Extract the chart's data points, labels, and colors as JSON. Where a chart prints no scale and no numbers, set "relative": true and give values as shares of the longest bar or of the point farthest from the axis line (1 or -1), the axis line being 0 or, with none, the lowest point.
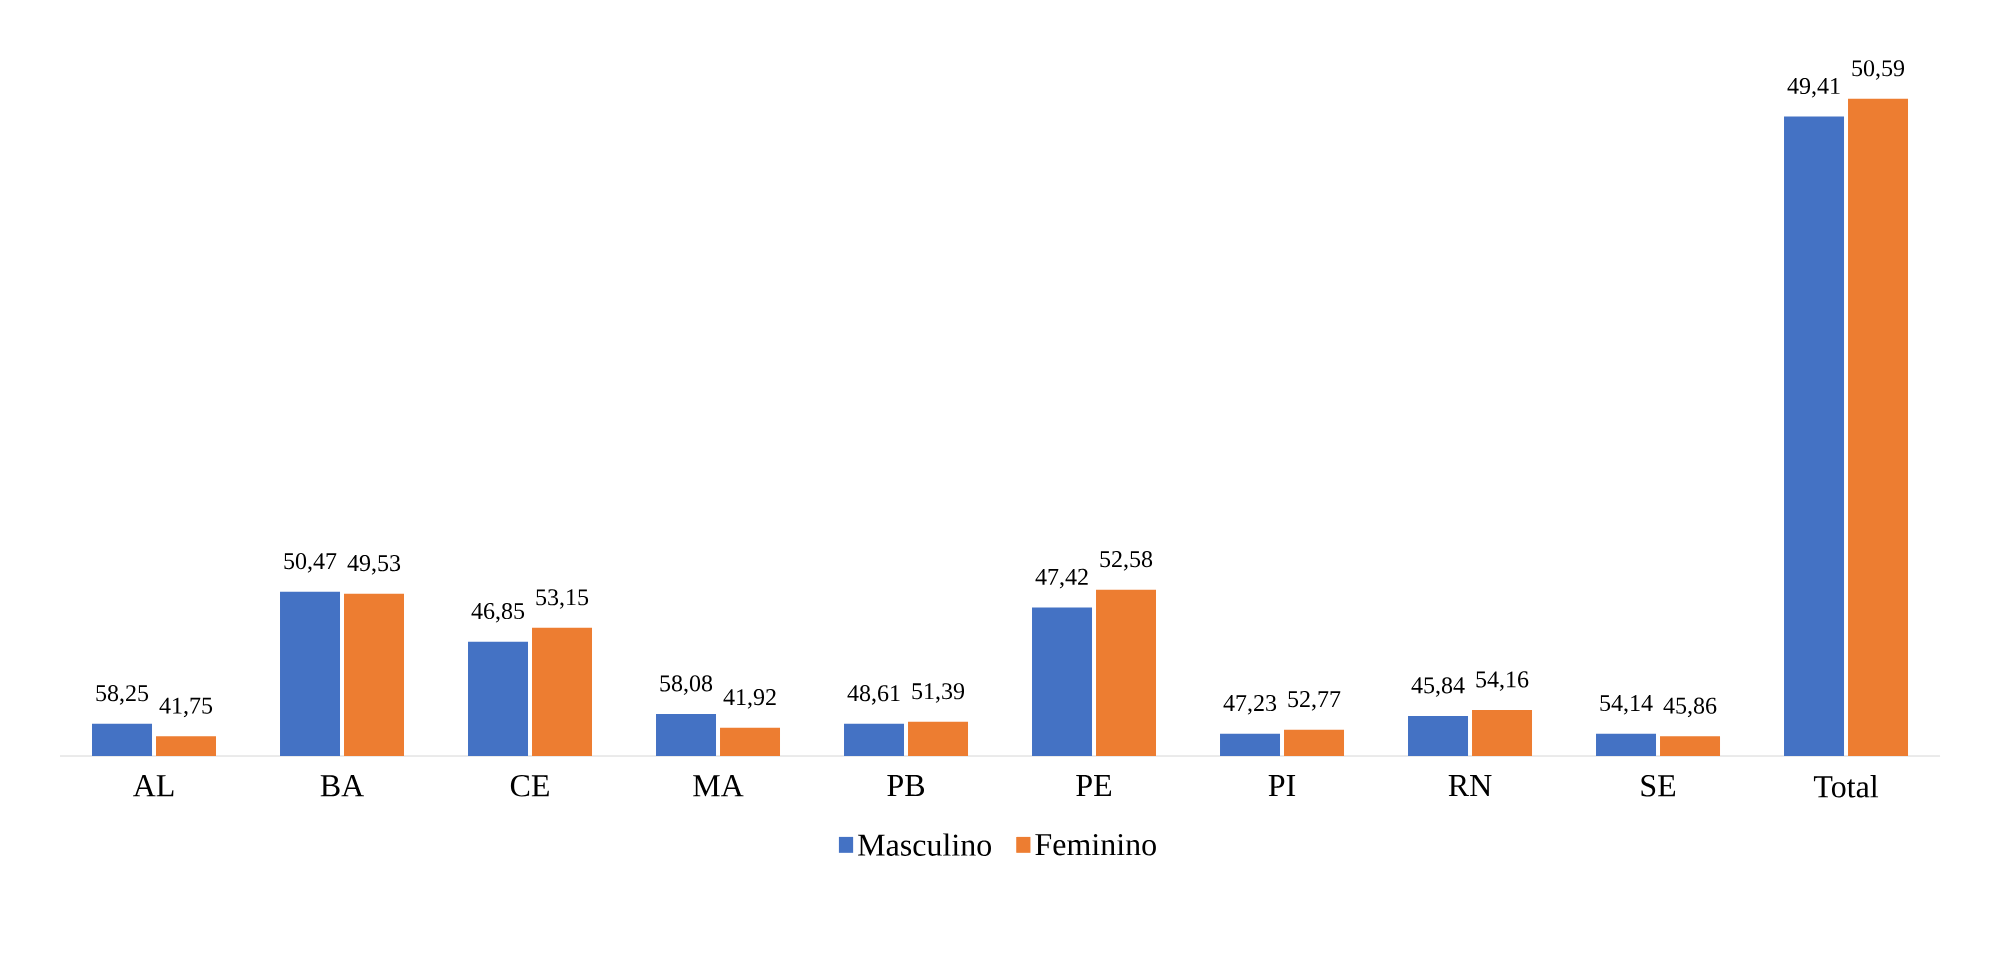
{
  "chart_data": {
    "type": "bar",
    "relative": true,
    "legend": "bottom",
    "categories": [
      "AL",
      "BA",
      "CE",
      "MA",
      "PB",
      "PE",
      "PI",
      "RN",
      "SE",
      "Total"
    ],
    "series": [
      {
        "name": "Masculino",
        "color": "#4472c4",
        "values": [
          0.049,
          0.25,
          0.174,
          0.064,
          0.049,
          0.226,
          0.034,
          0.061,
          0.034,
          0.973
        ]
      },
      {
        "name": "Feminino",
        "color": "#ed7d31",
        "values": [
          0.03,
          0.247,
          0.195,
          0.043,
          0.052,
          0.253,
          0.04,
          0.07,
          0.03,
          1
        ]
      }
    ],
    "annotations": [
      {
        "text": "58,25",
        "x": "AL",
        "y": 0.049
      },
      {
        "text": "50,47",
        "x": "BA",
        "y": 0.25
      },
      {
        "text": "46,85",
        "x": "CE",
        "y": 0.174
      },
      {
        "text": "58,08",
        "x": "MA",
        "y": 0.064
      },
      {
        "text": "48,61",
        "x": "PB",
        "y": 0.049
      },
      {
        "text": "47,42",
        "x": "PE",
        "y": 0.226
      },
      {
        "text": "47,23",
        "x": "PI",
        "y": 0.034
      },
      {
        "text": "45,84",
        "x": "RN",
        "y": 0.061
      },
      {
        "text": "54,14",
        "x": "SE",
        "y": 0.034
      },
      {
        "text": "49,41",
        "x": "Total",
        "y": 0.973
      },
      {
        "text": "41,75",
        "x": "AL",
        "y": 0.03
      },
      {
        "text": "49,53",
        "x": "BA",
        "y": 0.247
      },
      {
        "text": "53,15",
        "x": "CE",
        "y": 0.195
      },
      {
        "text": "41,92",
        "x": "MA",
        "y": 0.043
      },
      {
        "text": "51,39",
        "x": "PB",
        "y": 0.052
      },
      {
        "text": "52,58",
        "x": "PE",
        "y": 0.253
      },
      {
        "text": "52,77",
        "x": "PI",
        "y": 0.04
      },
      {
        "text": "54,16",
        "x": "RN",
        "y": 0.07
      },
      {
        "text": "45,86",
        "x": "SE",
        "y": 0.03
      },
      {
        "text": "50,59",
        "x": "Total",
        "y": 1
      }
    ]
  }
}
